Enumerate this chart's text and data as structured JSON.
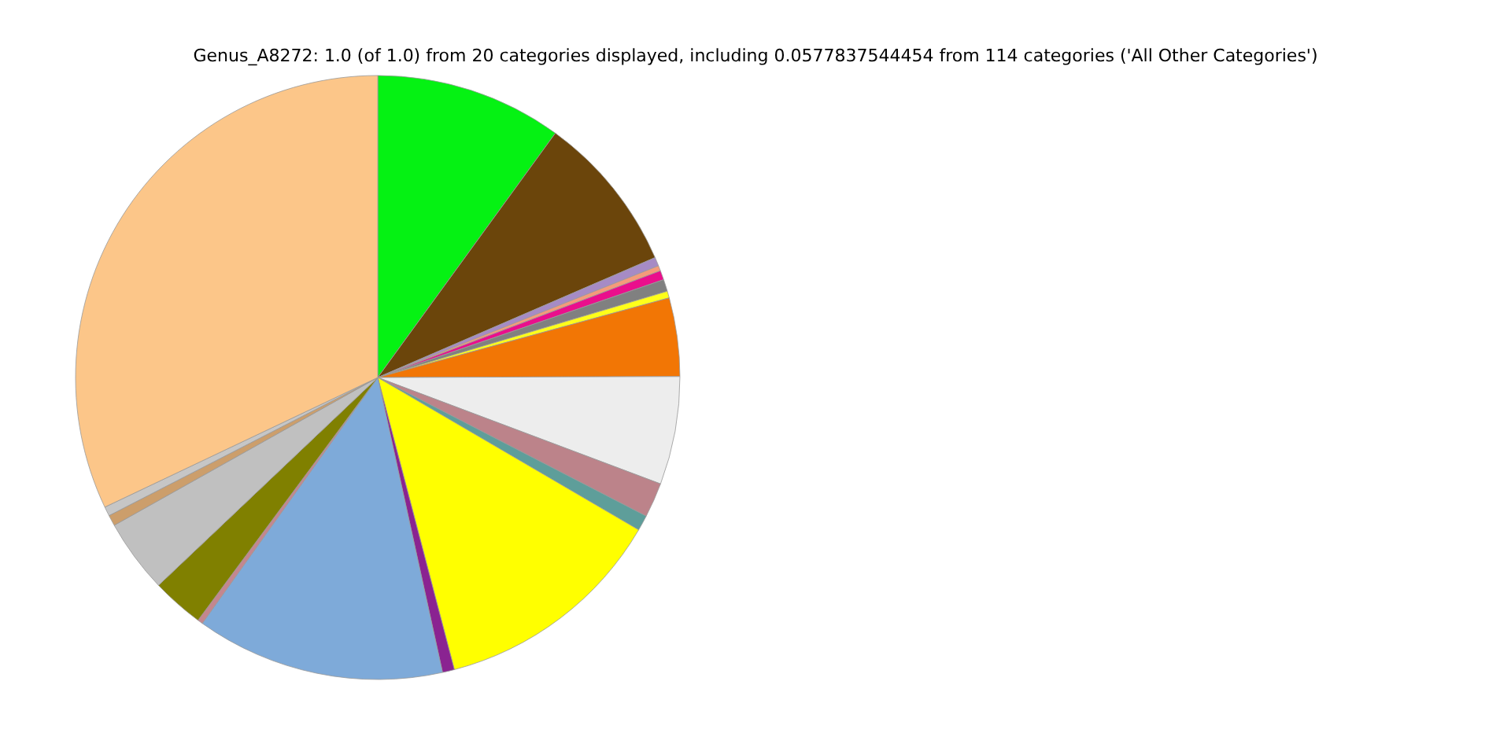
{
  "chart_data": {
    "type": "pie",
    "title": "Genus_A8272: 1.0 (of 1.0) from 20 categories displayed, including 0.0577837544454 from 114 categories ('All Other Categories')",
    "categories": [
      null,
      null,
      null,
      null,
      null,
      null,
      null,
      null,
      null,
      null,
      null,
      null,
      null,
      null,
      null,
      null,
      null,
      null,
      null,
      null
    ],
    "values": [
      10.0,
      8.5,
      0.47,
      0.28,
      0.5,
      0.64,
      0.36,
      4.2,
      5.78,
      1.86,
      0.83,
      12.5,
      0.64,
      13.3,
      0.28,
      2.78,
      3.94,
      0.58,
      0.5,
      32.06
    ],
    "colors": [
      "#05f213",
      "#6b450b",
      "#a68bc5",
      "#f59b7a",
      "#ea0f8c",
      "#808080",
      "#ffff1a",
      "#f27605",
      "#ededed",
      "#bc838a",
      "#5e9e9a",
      "#ffff00",
      "#8a2391",
      "#7eaad9",
      "#c4868e",
      "#808000",
      "#c0c0c0",
      "#cc9e6b",
      "#c6c6c6",
      "#fcc689"
    ]
  }
}
